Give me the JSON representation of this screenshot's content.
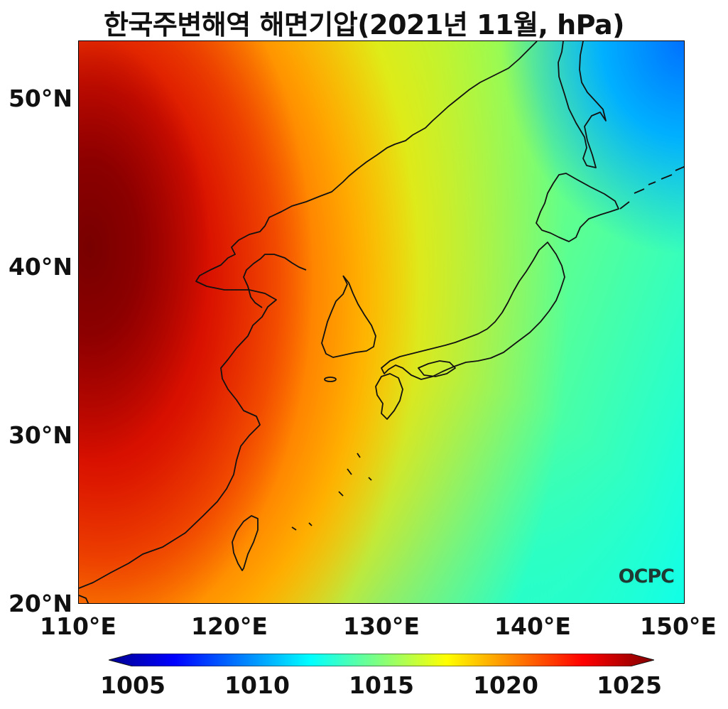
{
  "title": "한국주변해역 해면기압(2021년 11월, hPa)",
  "watermark": "OCPC",
  "axes": {
    "lat_ticks": [
      "20°N",
      "30°N",
      "40°N",
      "50°N"
    ],
    "lon_ticks": [
      "110°E",
      "120°E",
      "130°E",
      "140°E",
      "150°E"
    ]
  },
  "colorbar": {
    "tick_labels": [
      "1005",
      "1010",
      "1015",
      "1020",
      "1025"
    ],
    "colormap": "jet",
    "colors": [
      "#000080",
      "#0000ff",
      "#00ffff",
      "#ffff00",
      "#ff0000",
      "#800000"
    ]
  },
  "map": {
    "lon_range": [
      110,
      150
    ],
    "lat_range": [
      20,
      53.5
    ],
    "variable": "sea level pressure",
    "units": "hPa",
    "value_range": [
      1005,
      1025
    ]
  }
}
